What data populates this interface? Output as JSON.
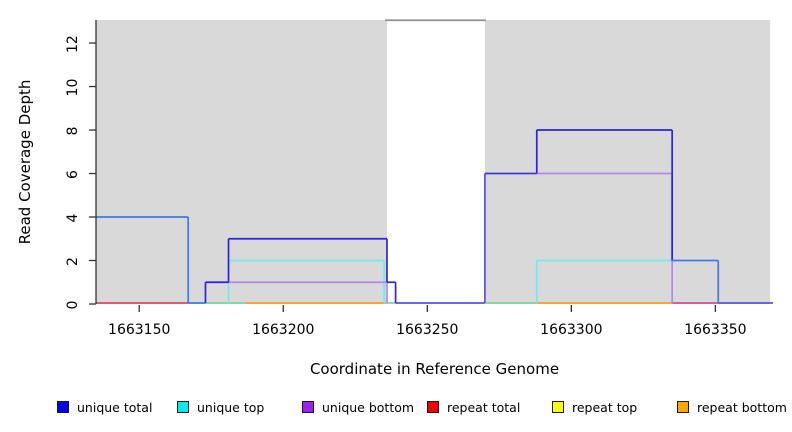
{
  "figure": {
    "y_axis_title": "Read Coverage Depth",
    "x_axis_title": "Coordinate in Reference Genome"
  },
  "palette": {
    "shade": "#d9d9d9",
    "gap_line": "#8f8f8f",
    "axis": "#333333",
    "blue_dark": "#2b24db",
    "blue_light": "#3f79e8",
    "indigo": "#4038de",
    "cyan": "#74e8f2",
    "purple": "#b289e8",
    "violet": "#5a50e0",
    "crimson": "#dc4a66",
    "magenta": "#d1508c",
    "green": "#7fd49c",
    "orange": "#ff9b1e"
  },
  "chart_data": {
    "type": "line",
    "subtype": "step-coverage",
    "xlabel": "Coordinate in Reference Genome",
    "ylabel": "Read Coverage Depth",
    "x_domain": [
      1663135,
      1663370
    ],
    "y_domain": [
      0,
      13.06
    ],
    "x_ticks": [
      1663150,
      1663200,
      1663250,
      1663300,
      1663350
    ],
    "y_ticks": [
      0,
      2,
      4,
      6,
      8,
      10,
      12
    ],
    "shaded_regions": [
      [
        1663135,
        1663236
      ],
      [
        1663270,
        1663369
      ]
    ],
    "unshaded_gap": [
      1663236,
      1663270
    ],
    "gap_top_line_y": 13.05,
    "legend": [
      {
        "label": "unique total",
        "color": "#0000EE"
      },
      {
        "label": "unique top",
        "color": "#00EEEE"
      },
      {
        "label": "unique bottom",
        "color": "#A020F0"
      },
      {
        "label": "repeat total",
        "color": "#EE0000"
      },
      {
        "label": "repeat top",
        "color": "#FFFF00"
      },
      {
        "label": "repeat bottom",
        "color": "#FFA500"
      }
    ],
    "series": [
      {
        "name": "unique total",
        "color": "#0000EE",
        "steps": [
          [
            1663135,
            1663167,
            4
          ],
          [
            1663167,
            1663173,
            0
          ],
          [
            1663173,
            1663181,
            1
          ],
          [
            1663181,
            1663236,
            3
          ],
          [
            1663236,
            1663239,
            1
          ],
          [
            1663239,
            1663270,
            0
          ],
          [
            1663270,
            1663288,
            6
          ],
          [
            1663288,
            1663335,
            8
          ],
          [
            1663335,
            1663351,
            2
          ],
          [
            1663351,
            1663370,
            0
          ]
        ]
      },
      {
        "name": "unique top",
        "color": "#00EEEE",
        "steps": [
          [
            1663135,
            1663181,
            0
          ],
          [
            1663181,
            1663235,
            2
          ],
          [
            1663235,
            1663288,
            0
          ],
          [
            1663288,
            1663351,
            2
          ],
          [
            1663351,
            1663370,
            0
          ]
        ]
      },
      {
        "name": "unique bottom",
        "color": "#A020F0",
        "steps": [
          [
            1663135,
            1663173,
            0
          ],
          [
            1663173,
            1663236,
            1
          ],
          [
            1663236,
            1663270,
            0
          ],
          [
            1663270,
            1663335,
            6
          ],
          [
            1663335,
            1663370,
            0
          ]
        ]
      },
      {
        "name": "repeat total",
        "color": "#EE0000",
        "steps": [
          [
            1663135,
            1663370,
            0
          ]
        ]
      },
      {
        "name": "repeat top",
        "color": "#FFFF00",
        "steps": [
          [
            1663135,
            1663370,
            0
          ]
        ]
      },
      {
        "name": "repeat bottom",
        "color": "#FFA500",
        "steps": [
          [
            1663135,
            1663370,
            0
          ]
        ]
      }
    ],
    "baseline_segments": [
      {
        "x1": 1663135,
        "x2": 1663167,
        "c": "crimson"
      },
      {
        "x1": 1663173,
        "x2": 1663187,
        "c": "green"
      },
      {
        "x1": 1663187,
        "x2": 1663235,
        "c": "orange"
      },
      {
        "x1": 1663235,
        "x2": 1663239,
        "c": "green"
      },
      {
        "x1": 1663239,
        "x2": 1663270,
        "c": "violet"
      },
      {
        "x1": 1663270,
        "x2": 1663288,
        "c": "green"
      },
      {
        "x1": 1663288,
        "x2": 1663335,
        "c": "orange"
      },
      {
        "x1": 1663335,
        "x2": 1663351,
        "c": "magenta"
      },
      {
        "x1": 1663351,
        "x2": 1663370,
        "c": "violet"
      }
    ],
    "visible_segments": [
      {
        "t": "v",
        "x": 1663167,
        "y1": 0,
        "y2": 4,
        "c": "blue_light"
      },
      {
        "t": "h",
        "y": 4,
        "x1": 1663135,
        "x2": 1663167,
        "c": "blue_light"
      },
      {
        "t": "h",
        "y": 0,
        "x1": 1663167,
        "x2": 1663173,
        "c": "blue_light"
      },
      {
        "t": "v",
        "x": 1663173,
        "y1": 0,
        "y2": 1,
        "c": "blue_dark"
      },
      {
        "t": "v",
        "x": 1663181,
        "y1": 0,
        "y2": 2,
        "c": "cyan"
      },
      {
        "t": "h",
        "y": 2,
        "x1": 1663181,
        "x2": 1663235,
        "c": "cyan"
      },
      {
        "t": "v",
        "x": 1663235,
        "y1": 0,
        "y2": 2,
        "c": "cyan"
      },
      {
        "t": "h",
        "y": 1,
        "x1": 1663173,
        "x2": 1663236,
        "c": "purple"
      },
      {
        "t": "v",
        "x": 1663236,
        "y1": 0,
        "y2": 1,
        "c": "purple"
      },
      {
        "t": "h",
        "y": 1,
        "x1": 1663173,
        "x2": 1663181,
        "c": "blue_dark"
      },
      {
        "t": "v",
        "x": 1663181,
        "y1": 1,
        "y2": 3,
        "c": "blue_dark"
      },
      {
        "t": "h",
        "y": 3,
        "x1": 1663181,
        "x2": 1663236,
        "c": "blue_dark"
      },
      {
        "t": "v",
        "x": 1663236,
        "y1": 1,
        "y2": 3,
        "c": "blue_dark"
      },
      {
        "t": "h",
        "y": 1,
        "x1": 1663236,
        "x2": 1663239,
        "c": "blue_dark"
      },
      {
        "t": "v",
        "x": 1663239,
        "y1": 0,
        "y2": 1,
        "c": "blue_dark"
      },
      {
        "t": "v",
        "x": 1663270,
        "y1": 0,
        "y2": 6,
        "c": "violet"
      },
      {
        "t": "h",
        "y": 6,
        "x1": 1663270,
        "x2": 1663288,
        "c": "indigo"
      },
      {
        "t": "v",
        "x": 1663288,
        "y1": 0,
        "y2": 2,
        "c": "cyan"
      },
      {
        "t": "h",
        "y": 2,
        "x1": 1663288,
        "x2": 1663335,
        "c": "cyan"
      },
      {
        "t": "h",
        "y": 6,
        "x1": 1663288,
        "x2": 1663335,
        "c": "purple"
      },
      {
        "t": "v",
        "x": 1663335,
        "y1": 0,
        "y2": 6,
        "c": "purple"
      },
      {
        "t": "v",
        "x": 1663288,
        "y1": 6,
        "y2": 8,
        "c": "blue_dark"
      },
      {
        "t": "h",
        "y": 8,
        "x1": 1663288,
        "x2": 1663335,
        "c": "blue_dark"
      },
      {
        "t": "v",
        "x": 1663335,
        "y1": 2,
        "y2": 8,
        "c": "blue_dark"
      },
      {
        "t": "h",
        "y": 2,
        "x1": 1663335,
        "x2": 1663351,
        "c": "blue_light"
      },
      {
        "t": "v",
        "x": 1663351,
        "y1": 0,
        "y2": 2,
        "c": "blue_light"
      }
    ]
  }
}
